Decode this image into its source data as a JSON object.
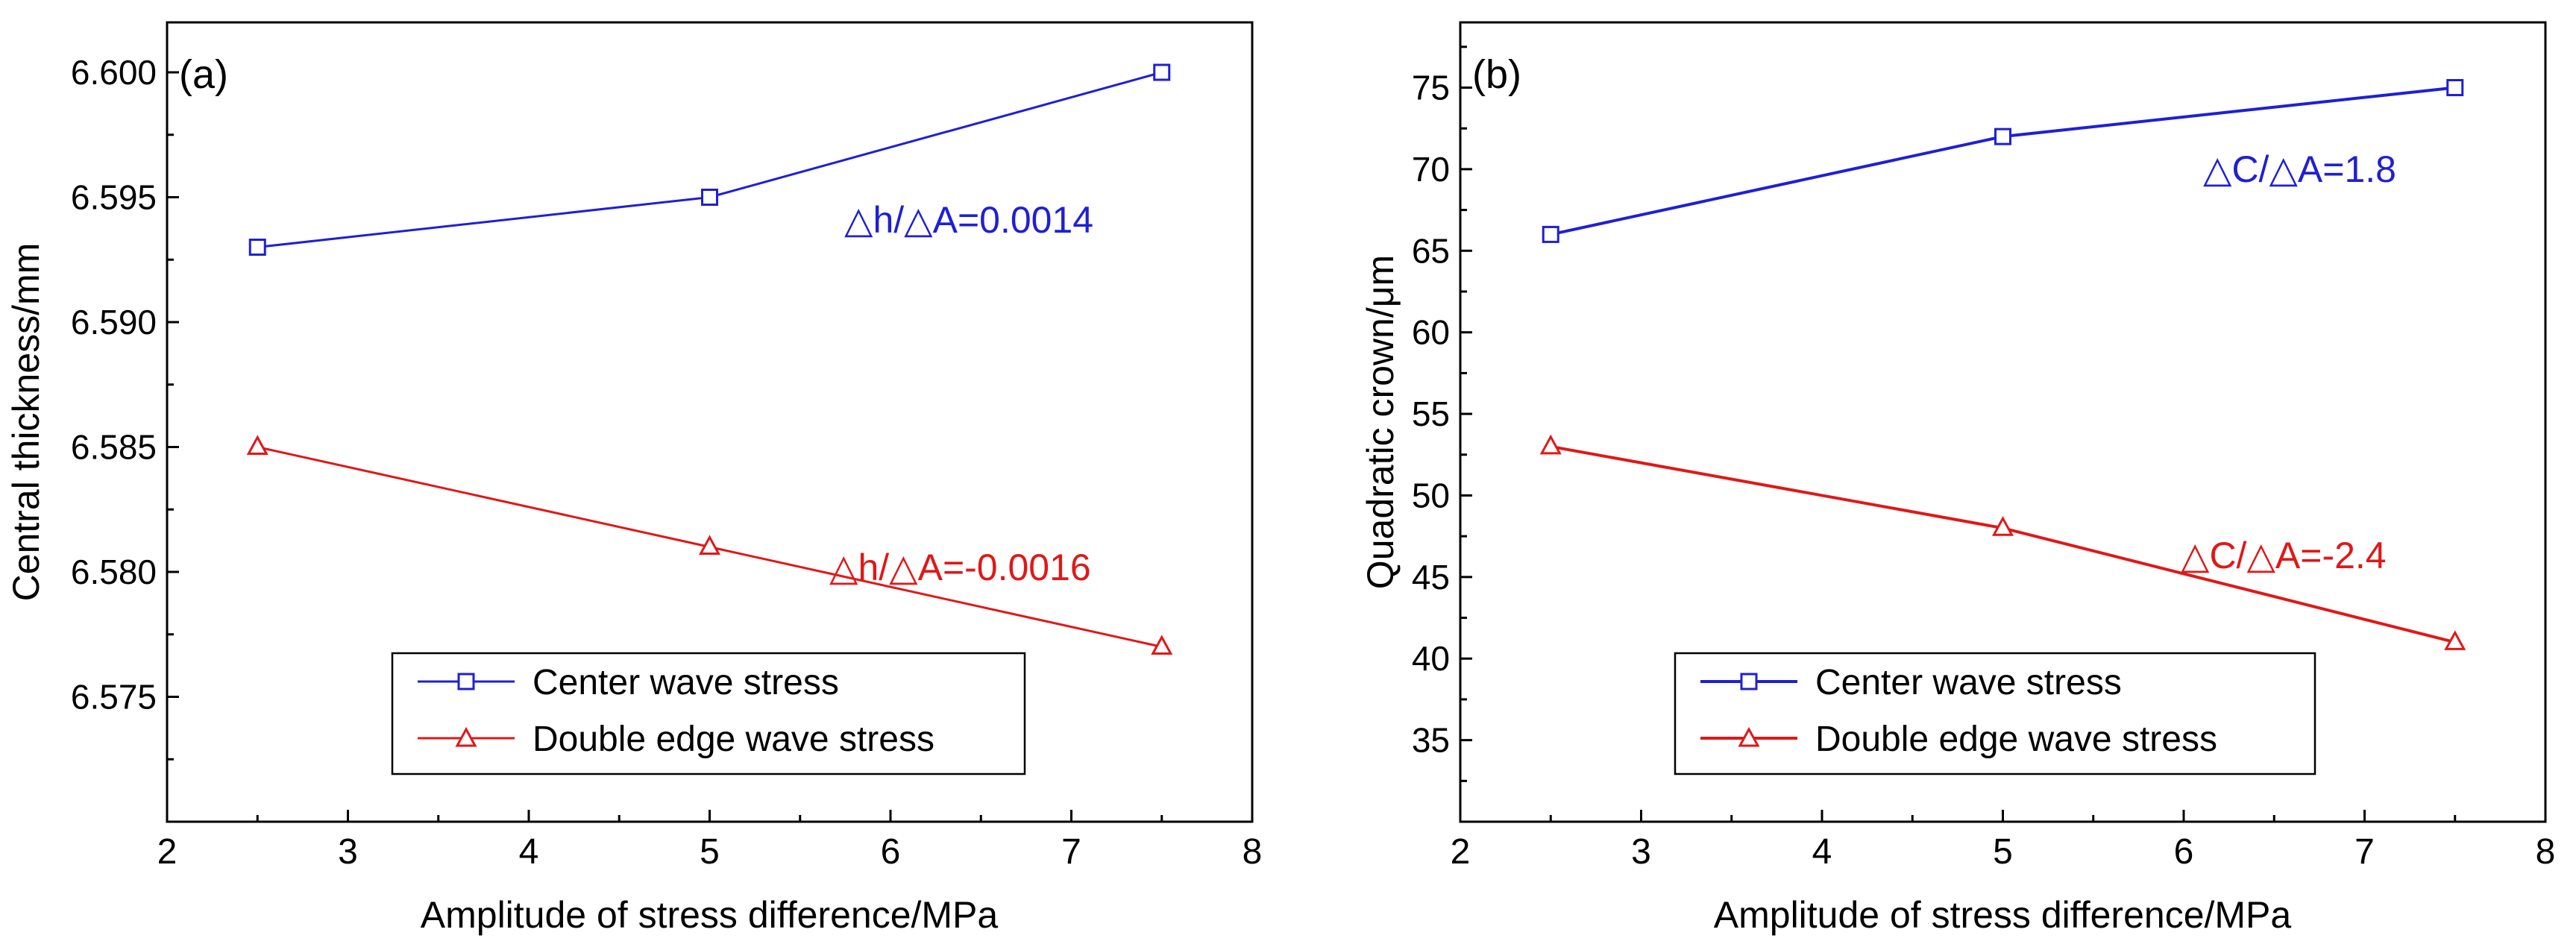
{
  "chart_data": [
    {
      "type": "line",
      "panel_label": "(a)",
      "title": "",
      "xlabel": "Amplitude of stress difference/MPa",
      "ylabel": "Central thickness/mm",
      "xlim": [
        2,
        8
      ],
      "ylim": [
        6.57,
        6.602
      ],
      "xticks": [
        "2",
        "3",
        "4",
        "5",
        "6",
        "7",
        "8"
      ],
      "xtick_values": [
        2,
        3,
        4,
        5,
        6,
        7,
        8
      ],
      "yticks": [
        "6.575",
        "6.580",
        "6.585",
        "6.590",
        "6.595",
        "6.600"
      ],
      "ytick_values": [
        6.575,
        6.58,
        6.585,
        6.59,
        6.595,
        6.6
      ],
      "grid": false,
      "legend_position": "bottom-right",
      "series": [
        {
          "name": "Center wave stress",
          "color": "#1f1fd6",
          "marker": "square",
          "x": [
            2.5,
            5,
            7.5
          ],
          "y": [
            6.593,
            6.595,
            6.6
          ]
        },
        {
          "name": "Double edge wave stress",
          "color": "#e01818",
          "marker": "triangle",
          "x": [
            2.5,
            5,
            7.5
          ],
          "y": [
            6.585,
            6.581,
            6.577
          ]
        }
      ],
      "annotations": [
        {
          "text": "△h/△A=0.0014",
          "color": "#1f1fd6",
          "series": 0
        },
        {
          "text": "△h/△A=-0.0016",
          "color": "#e01818",
          "series": 1
        }
      ]
    },
    {
      "type": "line",
      "panel_label": "(b)",
      "title": "",
      "xlabel": "Amplitude of stress difference/MPa",
      "ylabel": "Quadratic crown/μm",
      "xlim": [
        2,
        8
      ],
      "ylim": [
        30,
        79
      ],
      "xticks": [
        "2",
        "3",
        "4",
        "5",
        "6",
        "7",
        "8"
      ],
      "xtick_values": [
        2,
        3,
        4,
        5,
        6,
        7,
        8
      ],
      "yticks": [
        "35",
        "40",
        "45",
        "50",
        "55",
        "60",
        "65",
        "70",
        "75"
      ],
      "ytick_values": [
        35,
        40,
        45,
        50,
        55,
        60,
        65,
        70,
        75
      ],
      "grid": false,
      "legend_position": "bottom-right",
      "series": [
        {
          "name": "Center wave stress",
          "color": "#1f1fd6",
          "marker": "square",
          "x": [
            2.5,
            5,
            7.5
          ],
          "y": [
            66,
            72,
            75
          ]
        },
        {
          "name": "Double edge wave stress",
          "color": "#e01818",
          "marker": "triangle",
          "x": [
            2.5,
            5,
            7.5
          ],
          "y": [
            53,
            48,
            41
          ]
        }
      ],
      "annotations": [
        {
          "text": "△C/△A=1.8",
          "color": "#1f1fd6",
          "series": 0
        },
        {
          "text": "△C/△A=-2.4",
          "color": "#e01818",
          "series": 1
        }
      ]
    }
  ]
}
